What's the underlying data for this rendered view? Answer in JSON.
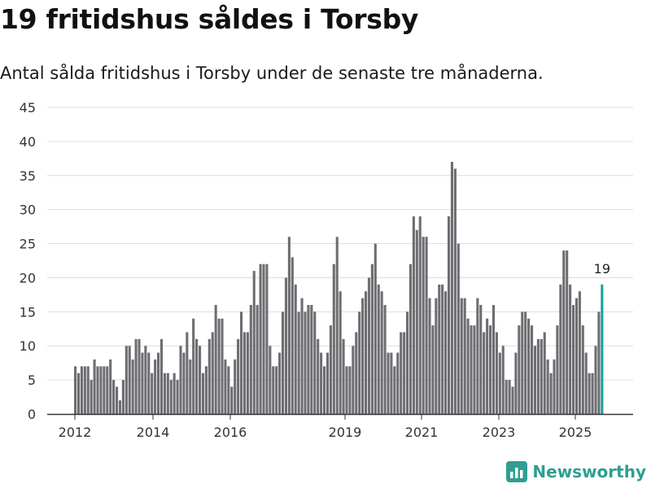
{
  "title": "19 fritidshus såldes i Torsby",
  "subtitle": "Antal sålda fritidshus i Torsby under de senaste tre månaderna.",
  "brand": {
    "name": "Newsworthy",
    "color": "#2f9e91"
  },
  "colors": {
    "bar": "#6e6d72",
    "highlight": "#18a296",
    "grid": "#dddddd",
    "axis": "#333333"
  },
  "chart_data": {
    "type": "bar",
    "ylim": [
      0,
      45
    ],
    "yticks": [
      0,
      5,
      10,
      15,
      20,
      25,
      30,
      35,
      40,
      45
    ],
    "grid": true,
    "x_tick_labels": [
      "2012",
      "2014",
      "2016",
      "2019",
      "2021",
      "2023",
      "2025"
    ],
    "highlight_label": "19",
    "values": [
      7,
      6,
      7,
      7,
      7,
      5,
      8,
      7,
      7,
      7,
      7,
      8,
      5,
      4,
      2,
      5,
      10,
      10,
      8,
      11,
      11,
      9,
      10,
      9,
      6,
      8,
      9,
      11,
      6,
      6,
      5,
      6,
      5,
      10,
      9,
      12,
      8,
      14,
      11,
      10,
      6,
      7,
      11,
      12,
      16,
      14,
      14,
      8,
      7,
      4,
      8,
      11,
      15,
      12,
      12,
      16,
      21,
      16,
      22,
      22,
      22,
      10,
      7,
      7,
      9,
      15,
      20,
      26,
      23,
      19,
      15,
      17,
      15,
      16,
      16,
      15,
      11,
      9,
      7,
      9,
      13,
      22,
      26,
      18,
      11,
      7,
      7,
      10,
      12,
      15,
      17,
      18,
      20,
      22,
      25,
      19,
      18,
      16,
      9,
      9,
      7,
      9,
      12,
      12,
      15,
      22,
      29,
      27,
      29,
      26,
      26,
      17,
      13,
      17,
      19,
      19,
      18,
      29,
      37,
      36,
      25,
      17,
      17,
      14,
      13,
      13,
      17,
      16,
      12,
      14,
      13,
      16,
      12,
      9,
      10,
      5,
      5,
      4,
      9,
      13,
      15,
      15,
      14,
      13,
      10,
      11,
      11,
      12,
      8,
      6,
      8,
      13,
      19,
      24,
      24,
      19,
      16,
      17,
      18,
      13,
      9,
      6,
      6,
      10,
      15,
      19
    ]
  }
}
